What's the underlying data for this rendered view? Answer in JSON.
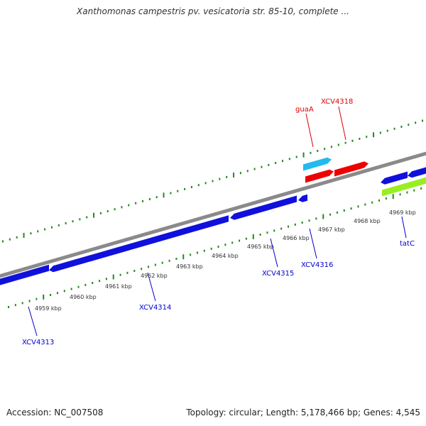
{
  "title": "Xanthomonas campestris pv. vesicatoria str. 85-10, complete ...",
  "footer": {
    "accession": "Accession: NC_007508",
    "summary": "Topology: circular; Length: 5,178,466 bp; Genes: 4,545"
  },
  "colors": {
    "backbone": "#8a8a8a",
    "tick": "#228822",
    "forward_label": "#dd0000",
    "reverse_label": "#0000cc",
    "gene_blue": "#1010dd",
    "gene_red": "#ee0000",
    "gene_cyan": "#22bbee",
    "gene_lime": "#99ee22"
  },
  "kbp_ticks": [
    "4959 kbp",
    "4960 kbp",
    "4961 kbp",
    "4962 kbp",
    "4963 kbp",
    "4964 kbp",
    "4965 kbp",
    "4966 kbp",
    "4967 kbp",
    "4968 kbp",
    "4969 kbp"
  ],
  "forward_genes": [
    {
      "label": "guaA",
      "color": "gene_cyan"
    },
    {
      "label": "XCV4318",
      "color": "gene_red"
    }
  ],
  "reverse_genes": [
    {
      "label": "XCV4313",
      "color": "gene_blue"
    },
    {
      "label": "XCV4314",
      "color": "gene_blue"
    },
    {
      "label": "XCV4315",
      "color": "gene_blue"
    },
    {
      "label": "XCV4316",
      "color": "gene_blue"
    },
    {
      "label": "tatC",
      "color": "gene_lime"
    }
  ]
}
